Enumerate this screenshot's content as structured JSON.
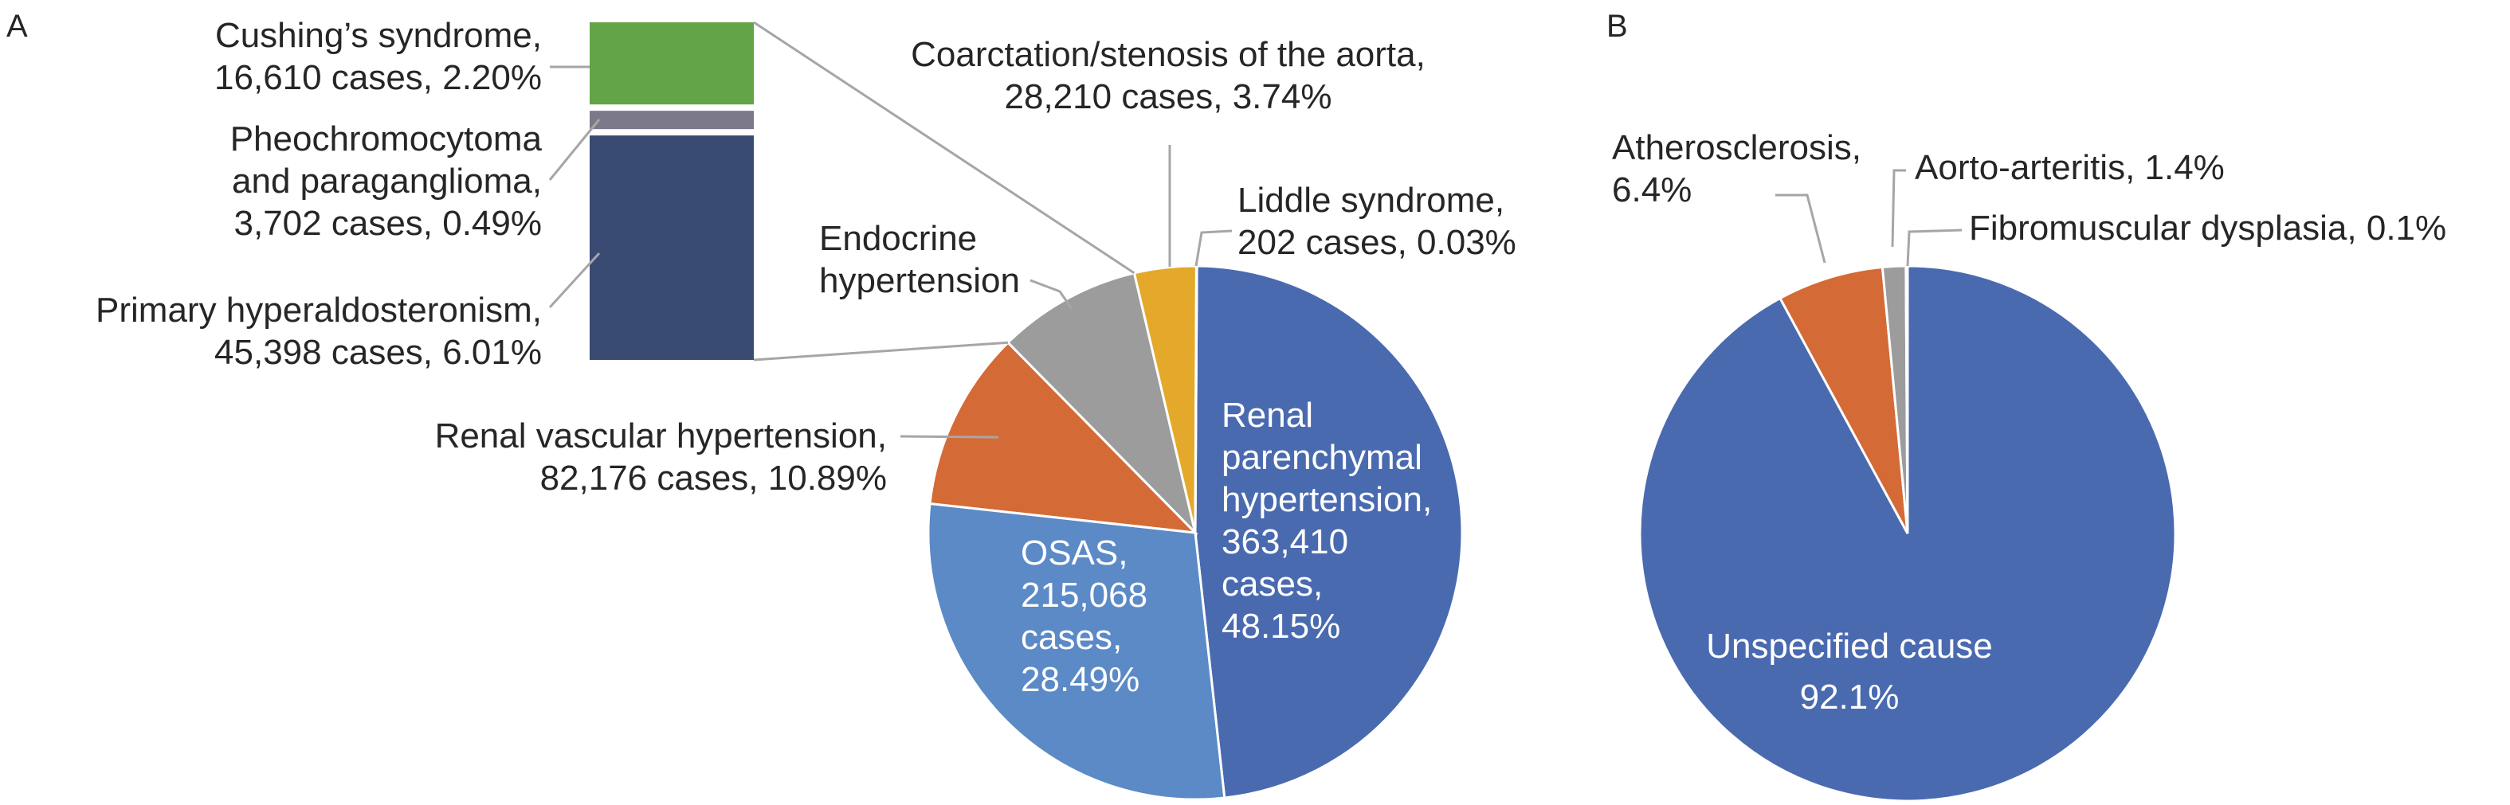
{
  "chart_data": [
    {
      "type": "pie",
      "panel_label": "A",
      "slices": [
        {
          "id": "renal-parenchymal",
          "label_lines": [
            "Renal",
            "parenchymal",
            "hypertension,",
            "363,410",
            "cases,",
            "48.15%"
          ],
          "cases": 363410,
          "percent": 48.15,
          "color": "#4a6ab0"
        },
        {
          "id": "osas",
          "label_lines": [
            "OSAS,",
            "215,068",
            "cases,",
            "28.49%"
          ],
          "cases": 215068,
          "percent": 28.49,
          "color": "#5b8ac6"
        },
        {
          "id": "renal-vascular",
          "label_lines": [
            "Renal vascular hypertension,",
            "82,176 cases, 10.89%"
          ],
          "cases": 82176,
          "percent": 10.89,
          "color": "#d46a36"
        },
        {
          "id": "endocrine",
          "label_lines": [
            "Endocrine",
            "hypertension"
          ],
          "percent": 8.7,
          "color": "#9c9c9c"
        },
        {
          "id": "coarctation",
          "label_lines": [
            "Coarctation/stenosis of the aorta,",
            "28,210 cases, 3.74%"
          ],
          "cases": 28210,
          "percent": 3.74,
          "color": "#e4a92a"
        },
        {
          "id": "liddle",
          "label_lines": [
            "Liddle syndrome,",
            "202 cases, 0.03%"
          ],
          "cases": 202,
          "percent": 0.03,
          "color": "#4f74b8"
        }
      ],
      "breakdown": {
        "of": "endocrine",
        "segments": [
          {
            "id": "cushing",
            "label_lines": [
              "Cushing’s syndrome,",
              "16,610 cases, 2.20%"
            ],
            "cases": 16610,
            "percent": 2.2,
            "color": "#62a447"
          },
          {
            "id": "pheo",
            "label_lines": [
              "Pheochromocytoma",
              "and paraganglioma,",
              "3,702 cases, 0.49%"
            ],
            "cases": 3702,
            "percent": 0.49,
            "color": "#7b7889"
          },
          {
            "id": "primary-hyperaldo",
            "label_lines": [
              "Primary hyperaldosteronism,",
              "45,398 cases, 6.01%"
            ],
            "cases": 45398,
            "percent": 6.01,
            "color": "#394a73"
          }
        ]
      }
    },
    {
      "type": "pie",
      "panel_label": "B",
      "slices": [
        {
          "id": "unspecified",
          "label_lines": [
            "Unspecified cause",
            "92.1%"
          ],
          "percent": 92.1,
          "color": "#4a6ab0"
        },
        {
          "id": "atherosclerosis",
          "label_lines": [
            "Atherosclerosis,",
            "6.4%"
          ],
          "percent": 6.4,
          "color": "#d46a36"
        },
        {
          "id": "aorto-arteritis",
          "label_lines": [
            "Aorto-arteritis, 1.4%"
          ],
          "percent": 1.4,
          "color": "#9c9c9c"
        },
        {
          "id": "fibromuscular",
          "label_lines": [
            "Fibromuscular dysplasia, 0.1%"
          ],
          "percent": 0.1,
          "color": "#e4a92a"
        }
      ]
    }
  ]
}
